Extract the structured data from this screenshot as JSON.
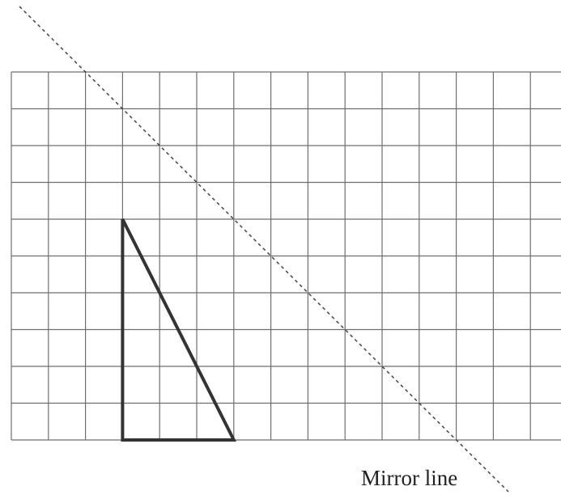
{
  "diagram": {
    "grid": {
      "columns": 15,
      "rows": 10,
      "line_color": "#6e6e6e"
    },
    "triangle": {
      "vertices": [
        {
          "col": 3,
          "row": 4
        },
        {
          "col": 3,
          "row": 10
        },
        {
          "col": 6,
          "row": 10
        }
      ],
      "stroke_color": "#333333"
    },
    "mirror_line": {
      "label": "Mirror line",
      "through_grid_points": [
        {
          "col": 2,
          "row": 0
        },
        {
          "col": 3,
          "row": 1
        }
      ],
      "style": "dashed",
      "color": "#444444"
    }
  }
}
